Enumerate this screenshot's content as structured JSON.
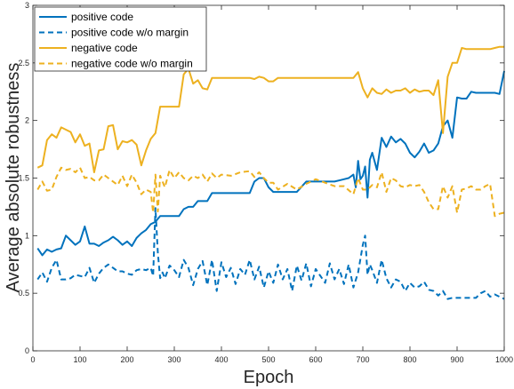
{
  "chart_data": {
    "type": "line",
    "title": "",
    "xlabel": "Epoch",
    "ylabel": "Average absolute robustness",
    "xlim": [
      0,
      1000
    ],
    "ylim": [
      0,
      3
    ],
    "xticks": [
      0,
      100,
      200,
      300,
      400,
      500,
      600,
      700,
      800,
      900,
      1000
    ],
    "yticks": [
      0,
      0.5,
      1,
      1.5,
      2,
      2.5,
      3
    ],
    "xtick_labels": [
      "0",
      "100",
      "200",
      "300",
      "400",
      "500",
      "600",
      "700",
      "800",
      "900",
      "1000"
    ],
    "ytick_labels": [
      "0",
      "0.5",
      "1",
      "1.5",
      "2",
      "2.5",
      "3"
    ],
    "grid": false,
    "legend_position": "top-left",
    "colors": {
      "blue": "#0072BD",
      "yellow": "#EDB120"
    },
    "series": [
      {
        "name": "positive code",
        "color": "#0072BD",
        "dash": "solid",
        "x": [
          10,
          20,
          30,
          40,
          50,
          60,
          70,
          80,
          90,
          100,
          110,
          120,
          130,
          140,
          150,
          160,
          170,
          180,
          190,
          200,
          210,
          220,
          230,
          240,
          250,
          260,
          270,
          280,
          290,
          300,
          310,
          320,
          330,
          340,
          350,
          360,
          370,
          380,
          390,
          400,
          420,
          440,
          460,
          470,
          480,
          490,
          500,
          510,
          520,
          540,
          560,
          580,
          600,
          620,
          640,
          660,
          670,
          680,
          685,
          690,
          695,
          700,
          705,
          710,
          715,
          720,
          730,
          740,
          750,
          760,
          770,
          780,
          790,
          800,
          810,
          820,
          830,
          840,
          850,
          860,
          870,
          880,
          890,
          900,
          910,
          920,
          930,
          940,
          950,
          960,
          970,
          980,
          990,
          1000
        ],
        "y": [
          0.89,
          0.83,
          0.88,
          0.86,
          0.88,
          0.89,
          1.0,
          0.96,
          0.92,
          0.95,
          1.08,
          0.93,
          0.93,
          0.91,
          0.94,
          0.96,
          0.99,
          0.96,
          0.92,
          0.95,
          0.91,
          0.98,
          1.02,
          1.05,
          1.1,
          1.12,
          1.17,
          1.17,
          1.17,
          1.17,
          1.17,
          1.23,
          1.25,
          1.25,
          1.3,
          1.3,
          1.3,
          1.37,
          1.37,
          1.37,
          1.37,
          1.37,
          1.37,
          1.47,
          1.5,
          1.5,
          1.42,
          1.38,
          1.38,
          1.38,
          1.38,
          1.47,
          1.47,
          1.47,
          1.47,
          1.49,
          1.5,
          1.53,
          1.42,
          1.65,
          1.49,
          1.52,
          1.6,
          1.33,
          1.66,
          1.72,
          1.57,
          1.85,
          1.77,
          1.86,
          1.81,
          1.84,
          1.8,
          1.72,
          1.68,
          1.73,
          1.8,
          1.72,
          1.74,
          1.8,
          1.95,
          2.0,
          1.85,
          2.2,
          2.19,
          2.19,
          2.25,
          2.24,
          2.24,
          2.24,
          2.24,
          2.24,
          2.23,
          2.43
        ]
      },
      {
        "name": "positive code w/o margin",
        "color": "#0072BD",
        "dash": "dashed",
        "x": [
          10,
          20,
          30,
          40,
          50,
          60,
          70,
          80,
          90,
          100,
          110,
          120,
          130,
          140,
          150,
          160,
          170,
          180,
          190,
          200,
          210,
          220,
          230,
          240,
          250,
          255,
          260,
          265,
          270,
          275,
          280,
          290,
          300,
          310,
          320,
          330,
          340,
          350,
          360,
          370,
          380,
          390,
          400,
          410,
          420,
          430,
          440,
          450,
          460,
          470,
          480,
          490,
          500,
          510,
          520,
          530,
          540,
          550,
          560,
          570,
          580,
          590,
          600,
          610,
          620,
          630,
          640,
          650,
          660,
          670,
          680,
          690,
          700,
          705,
          710,
          715,
          720,
          730,
          740,
          750,
          760,
          770,
          780,
          790,
          800,
          810,
          820,
          830,
          840,
          850,
          860,
          870,
          880,
          890,
          900,
          910,
          920,
          930,
          940,
          950,
          960,
          970,
          980,
          990,
          1000
        ],
        "y": [
          0.62,
          0.68,
          0.6,
          0.72,
          0.79,
          0.62,
          0.62,
          0.63,
          0.66,
          0.65,
          0.64,
          0.72,
          0.59,
          0.67,
          0.72,
          0.75,
          0.72,
          0.69,
          0.69,
          0.67,
          0.66,
          0.7,
          0.71,
          0.7,
          0.72,
          0.65,
          1.24,
          0.85,
          0.63,
          0.68,
          0.63,
          0.74,
          0.7,
          0.64,
          0.79,
          0.72,
          0.57,
          0.71,
          0.78,
          0.57,
          0.79,
          0.52,
          0.77,
          0.64,
          0.72,
          0.58,
          0.71,
          0.66,
          0.79,
          0.62,
          0.73,
          0.55,
          0.69,
          0.59,
          0.75,
          0.62,
          0.71,
          0.52,
          0.74,
          0.61,
          0.76,
          0.56,
          0.71,
          0.65,
          0.59,
          0.76,
          0.62,
          0.71,
          0.58,
          0.75,
          0.55,
          0.68,
          0.92,
          1.0,
          0.66,
          0.75,
          0.7,
          0.59,
          0.79,
          0.63,
          0.55,
          0.62,
          0.6,
          0.52,
          0.59,
          0.55,
          0.56,
          0.6,
          0.53,
          0.52,
          0.48,
          0.52,
          0.45,
          0.46,
          0.46,
          0.46,
          0.46,
          0.46,
          0.46,
          0.5,
          0.52,
          0.47,
          0.49,
          0.47,
          0.45
        ]
      },
      {
        "name": "negative code",
        "color": "#EDB120",
        "dash": "solid",
        "x": [
          10,
          20,
          30,
          40,
          50,
          60,
          70,
          80,
          90,
          100,
          110,
          120,
          130,
          140,
          150,
          160,
          170,
          180,
          190,
          200,
          210,
          220,
          230,
          240,
          250,
          260,
          270,
          280,
          290,
          300,
          310,
          320,
          330,
          340,
          350,
          360,
          370,
          380,
          390,
          400,
          420,
          440,
          460,
          470,
          480,
          490,
          500,
          510,
          520,
          540,
          560,
          580,
          600,
          620,
          640,
          660,
          680,
          690,
          700,
          710,
          720,
          730,
          740,
          750,
          760,
          770,
          780,
          790,
          800,
          810,
          820,
          830,
          840,
          850,
          860,
          870,
          880,
          890,
          900,
          910,
          920,
          930,
          940,
          950,
          960,
          970,
          980,
          990,
          1000
        ],
        "y": [
          1.59,
          1.61,
          1.83,
          1.88,
          1.85,
          1.94,
          1.92,
          1.9,
          1.81,
          1.88,
          1.78,
          1.8,
          1.55,
          1.74,
          1.75,
          1.95,
          1.96,
          1.75,
          1.82,
          1.81,
          1.83,
          1.79,
          1.61,
          1.74,
          1.84,
          1.89,
          2.12,
          2.12,
          2.12,
          2.12,
          2.12,
          2.4,
          2.45,
          2.32,
          2.35,
          2.28,
          2.27,
          2.37,
          2.37,
          2.37,
          2.37,
          2.37,
          2.37,
          2.36,
          2.38,
          2.37,
          2.34,
          2.34,
          2.37,
          2.37,
          2.37,
          2.37,
          2.37,
          2.37,
          2.37,
          2.37,
          2.37,
          2.42,
          2.28,
          2.2,
          2.28,
          2.24,
          2.23,
          2.27,
          2.24,
          2.26,
          2.26,
          2.28,
          2.24,
          2.27,
          2.25,
          2.26,
          2.26,
          2.22,
          2.35,
          1.89,
          2.38,
          2.5,
          2.5,
          2.63,
          2.62,
          2.62,
          2.62,
          2.62,
          2.62,
          2.62,
          2.63,
          2.64,
          2.64
        ]
      },
      {
        "name": "negative code w/o margin",
        "color": "#EDB120",
        "dash": "dashed",
        "x": [
          10,
          20,
          30,
          40,
          50,
          60,
          70,
          80,
          90,
          100,
          110,
          120,
          130,
          140,
          150,
          160,
          170,
          180,
          190,
          200,
          210,
          220,
          230,
          240,
          250,
          255,
          260,
          265,
          270,
          280,
          290,
          300,
          310,
          320,
          330,
          340,
          350,
          360,
          370,
          380,
          390,
          400,
          420,
          440,
          460,
          470,
          480,
          490,
          500,
          510,
          520,
          540,
          560,
          580,
          600,
          620,
          640,
          660,
          680,
          690,
          700,
          710,
          720,
          730,
          740,
          750,
          760,
          770,
          780,
          790,
          800,
          810,
          820,
          830,
          840,
          850,
          860,
          870,
          880,
          890,
          900,
          910,
          920,
          930,
          940,
          950,
          960,
          970,
          980,
          990,
          1000
        ],
        "y": [
          1.4,
          1.47,
          1.39,
          1.4,
          1.51,
          1.59,
          1.57,
          1.58,
          1.55,
          1.59,
          1.5,
          1.51,
          1.48,
          1.48,
          1.53,
          1.5,
          1.47,
          1.44,
          1.52,
          1.43,
          1.53,
          1.46,
          1.36,
          1.4,
          1.38,
          1.2,
          1.53,
          1.21,
          1.52,
          1.42,
          1.57,
          1.5,
          1.55,
          1.5,
          1.48,
          1.52,
          1.5,
          1.53,
          1.47,
          1.54,
          1.5,
          1.53,
          1.52,
          1.55,
          1.56,
          1.51,
          1.55,
          1.5,
          1.46,
          1.46,
          1.4,
          1.45,
          1.4,
          1.45,
          1.49,
          1.46,
          1.43,
          1.43,
          1.36,
          1.5,
          1.4,
          1.4,
          1.44,
          1.42,
          1.55,
          1.38,
          1.5,
          1.48,
          1.43,
          1.42,
          1.44,
          1.43,
          1.44,
          1.38,
          1.29,
          1.23,
          1.23,
          1.43,
          1.33,
          1.43,
          1.2,
          1.4,
          1.41,
          1.43,
          1.4,
          1.4,
          1.43,
          1.45,
          1.17,
          1.19,
          1.2
        ]
      }
    ]
  }
}
